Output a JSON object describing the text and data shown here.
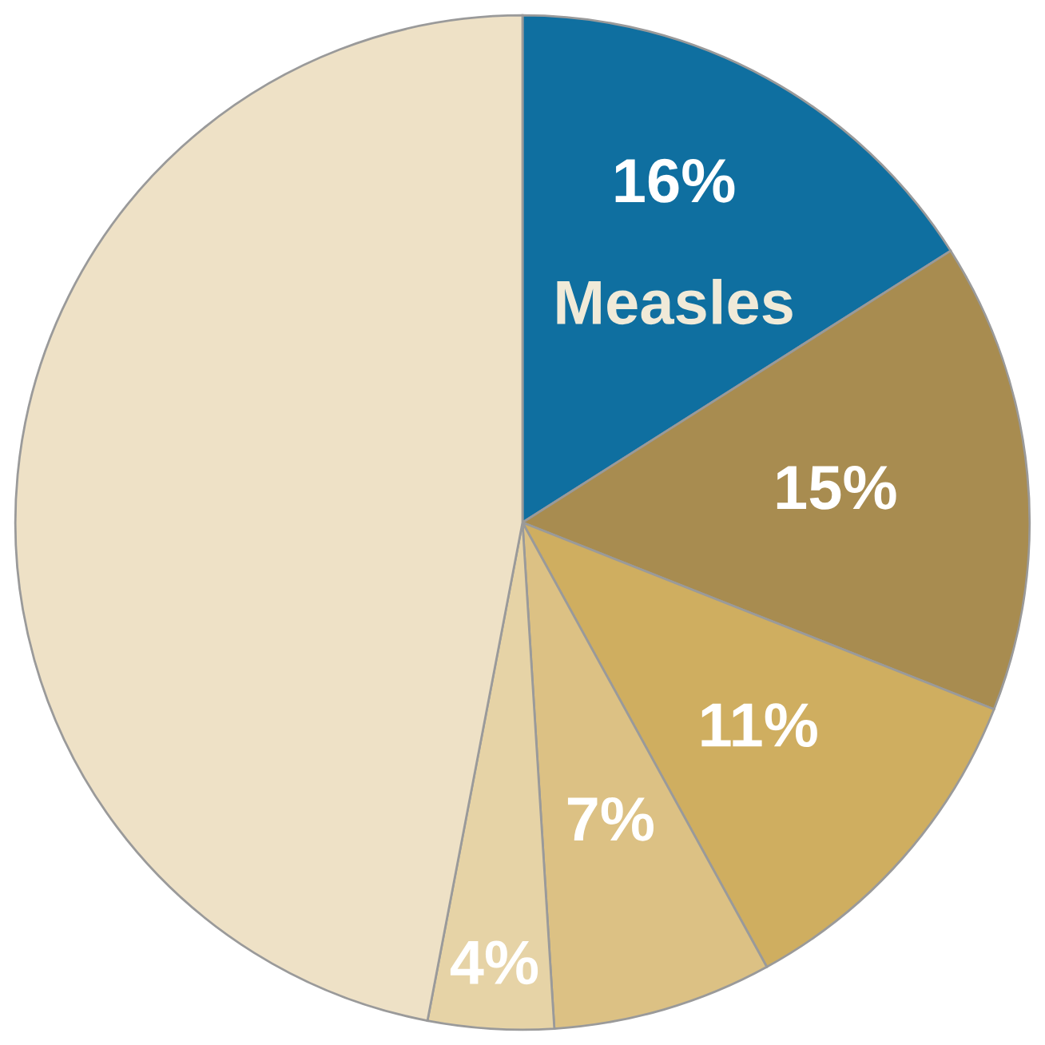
{
  "chart_data": {
    "type": "pie",
    "categories": [
      "Measles",
      null,
      null,
      null,
      null,
      null
    ],
    "values": [
      16,
      15,
      11,
      7,
      4,
      47
    ],
    "value_labels": [
      "16%",
      "15%",
      "11%",
      "7%",
      "4%",
      null
    ],
    "colors": [
      "#0f6fa0",
      "#a88c50",
      "#cfae60",
      "#dcc184",
      "#e6d3a6",
      "#eee1c6"
    ]
  }
}
